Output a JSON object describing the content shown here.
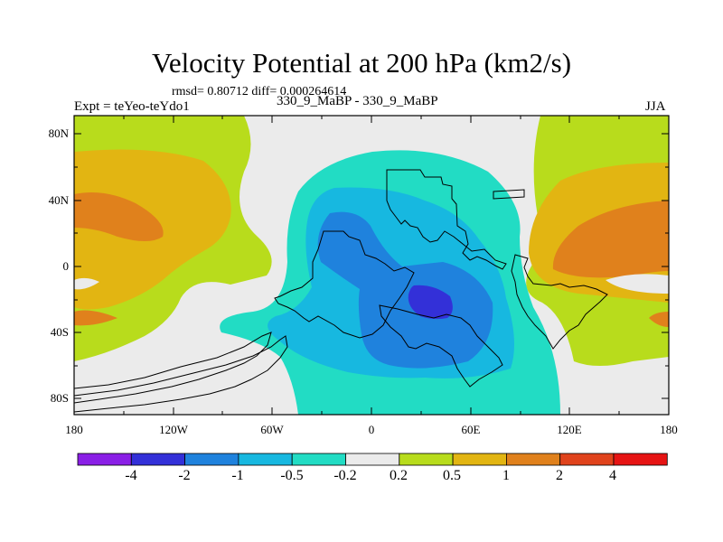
{
  "title": "Velocity Potential at 200 hPa (km2/s)",
  "stats_line": "rmsd= 0.80712 diff= 0.000264614",
  "experiment": "Expt = teYeo-teYdo1",
  "case_label": "330_9_MaBP - 330_9_MaBP",
  "season": "JJA",
  "lat_ticks": [
    "80N",
    "40N",
    "0",
    "40S",
    "80S"
  ],
  "lon_ticks": [
    "180",
    "120W",
    "60W",
    "0",
    "60E",
    "120E",
    "180"
  ],
  "colorbar": {
    "labels": [
      "-4",
      "-2",
      "-1",
      "-0.5",
      "-0.2",
      "0.2",
      "0.5",
      "1",
      "2",
      "4"
    ],
    "colors": [
      "#8a1fe6",
      "#3330d8",
      "#1f82dd",
      "#17b8e0",
      "#22dcc4",
      "#ebebeb",
      "#b8dc1c",
      "#e2b512",
      "#e0811c",
      "#e0431c",
      "#e61414"
    ]
  },
  "palette": {
    "c_m3": "#3330d8",
    "c_m2": "#1f82dd",
    "c_m1": "#17b8e0",
    "c_m05": "#22dcc4",
    "c_0": "#ebebeb",
    "c_p05": "#b8dc1c",
    "c_p1": "#e2b512",
    "c_p2": "#e0811c"
  }
}
